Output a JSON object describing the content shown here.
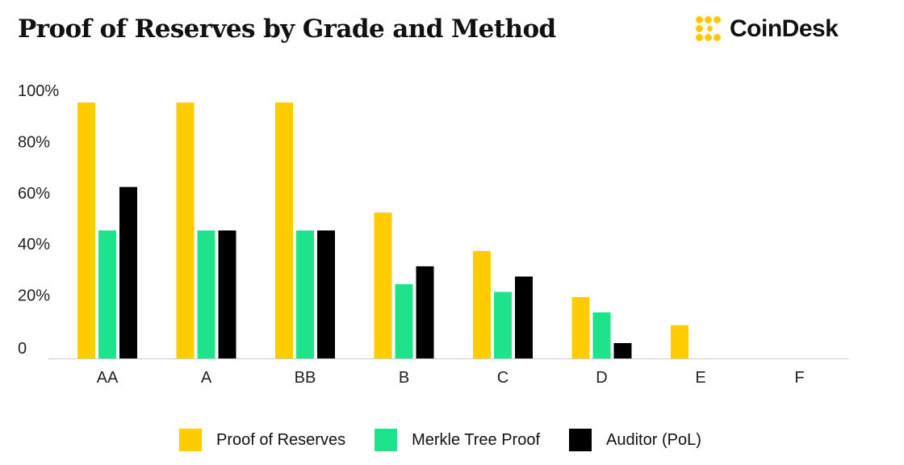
{
  "title": "Proof of Reserves by Grade and Method",
  "brand": {
    "name": "CoinDesk",
    "icon": "coindesk-logo-icon",
    "color": "#FFC800"
  },
  "chart_data": {
    "type": "bar",
    "title": "Proof of Reserves by Grade and Method",
    "xlabel": "",
    "ylabel": "",
    "categories": [
      "AA",
      "A",
      "BB",
      "B",
      "C",
      "D",
      "E",
      "F"
    ],
    "yticks": [
      {
        "value": 0,
        "label": "0"
      },
      {
        "value": 20,
        "label": "20%"
      },
      {
        "value": 40,
        "label": "40%"
      },
      {
        "value": 60,
        "label": "60%"
      },
      {
        "value": 80,
        "label": "80%"
      },
      {
        "value": 100,
        "label": "100%"
      }
    ],
    "ylim": [
      0,
      100
    ],
    "grid": false,
    "legend_position": "bottom",
    "series": [
      {
        "name": "Proof of Reserves",
        "color": "#FFCC00",
        "values": [
          100,
          100,
          100,
          57,
          42,
          24,
          13,
          0
        ]
      },
      {
        "name": "Merkle Tree Proof",
        "color": "#1EE38A",
        "values": [
          50,
          50,
          50,
          29,
          26,
          18,
          0,
          0
        ]
      },
      {
        "name": "Auditor (PoL)",
        "color": "#000000",
        "values": [
          67,
          50,
          50,
          36,
          32,
          6,
          0,
          0
        ]
      }
    ]
  }
}
